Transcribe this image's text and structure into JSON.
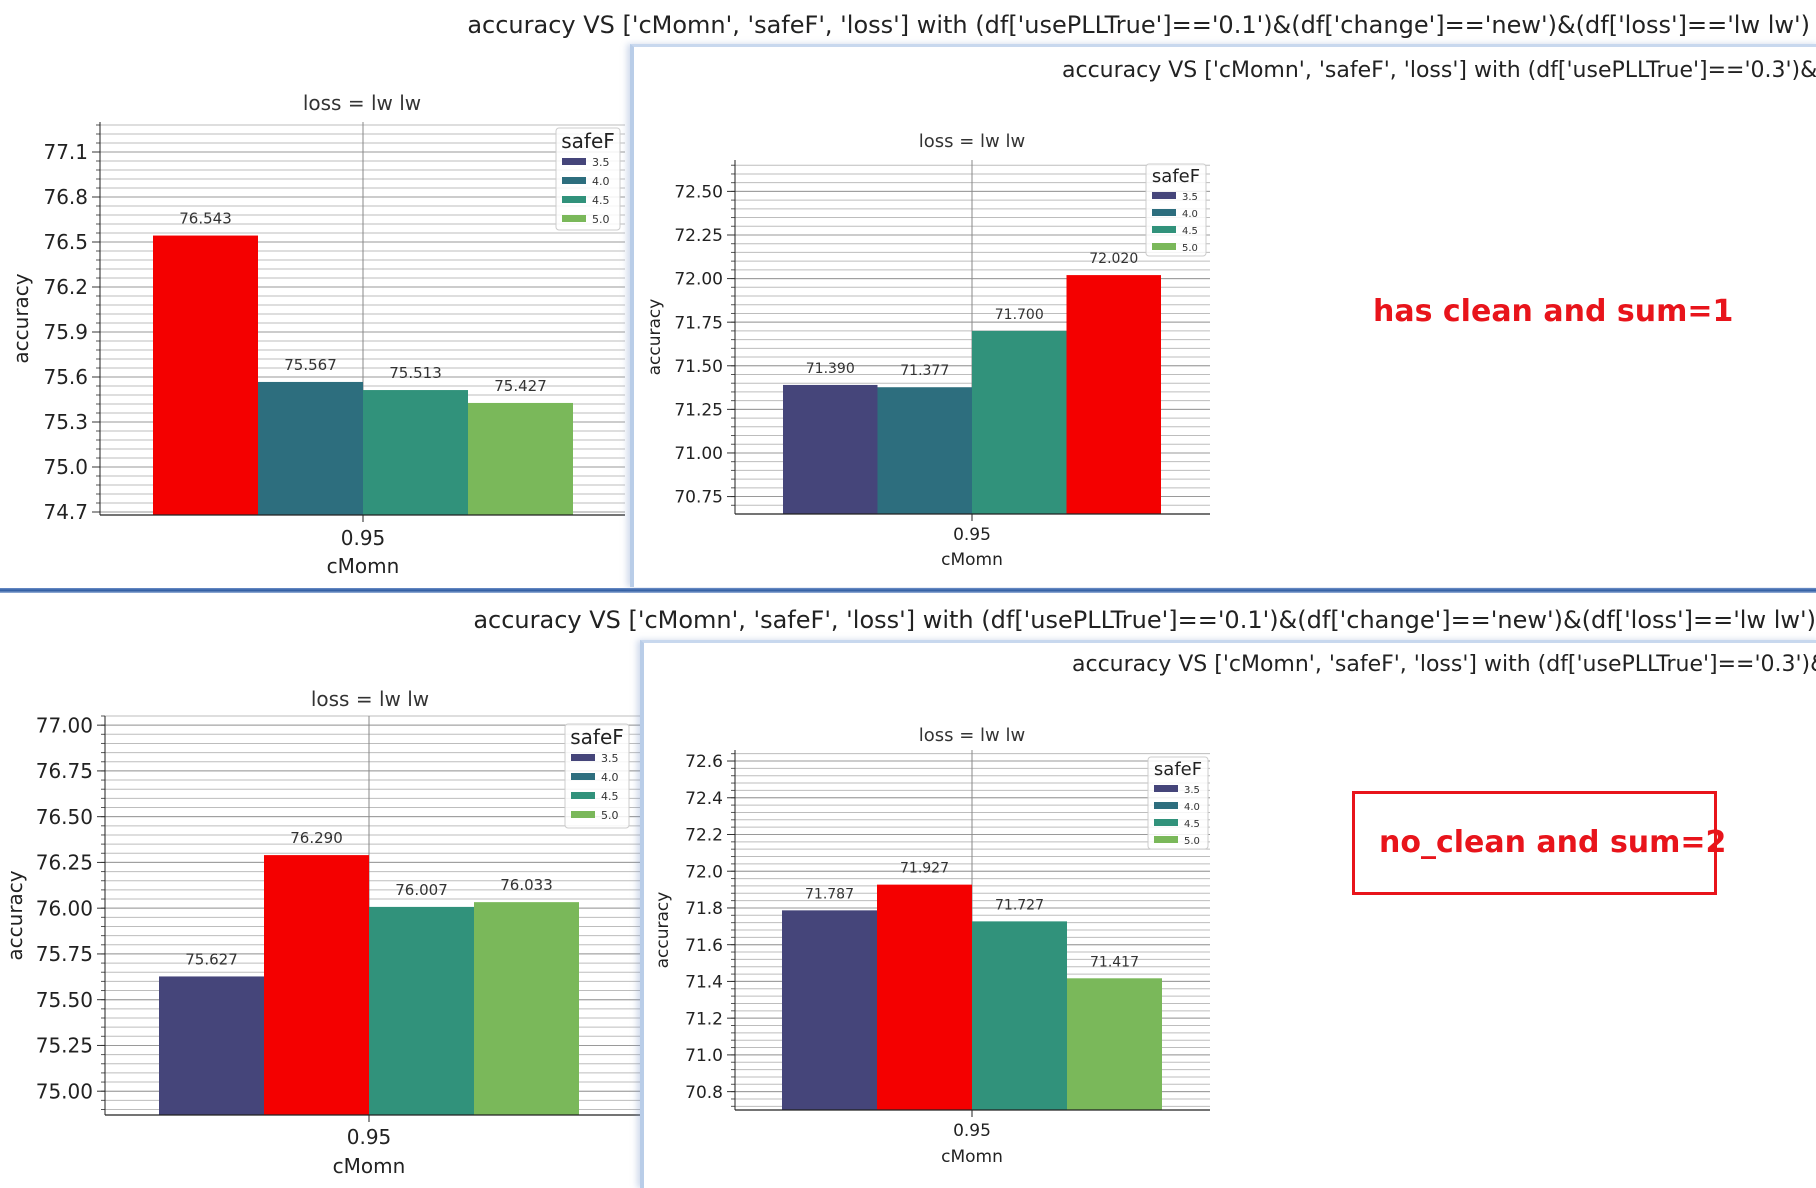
{
  "colors": {
    "3.5": "#45457a",
    "4.0": "#2d6e7e",
    "4.5": "#31927b",
    "5.0": "#7ab85a",
    "highlight": "#f40000",
    "annotation": "#e8141b"
  },
  "annotations": {
    "top": "has clean and sum=1",
    "bottom": "no_clean and sum=2"
  },
  "chart_data": [
    {
      "id": "top-left",
      "type": "bar",
      "title": "accuracy VS ['cMomn', 'safeF', 'loss'] with (df['usePLLTrue']=='0.1')&(df['change']=='new')&(df['loss']=='lw lw')",
      "subtitle": "loss = lw lw",
      "xlabel": "cMomn",
      "ylabel": "accuracy",
      "categories": [
        "0.95"
      ],
      "legend_title": "safeF",
      "legend_position": "top-right",
      "ylim": [
        74.68,
        77.3
      ],
      "yticks": [
        74.7,
        75.0,
        75.3,
        75.6,
        75.9,
        76.2,
        76.5,
        76.8,
        77.1
      ],
      "ytick_labels": [
        "74.7",
        "75.0",
        "75.3",
        "75.6",
        "75.9",
        "76.2",
        "76.5",
        "76.8",
        "77.1"
      ],
      "grid": true,
      "series": [
        {
          "name": "3.5",
          "values": [
            76.543
          ],
          "label": "76.543",
          "highlighted": true
        },
        {
          "name": "4.0",
          "values": [
            75.567
          ],
          "label": "75.567"
        },
        {
          "name": "4.5",
          "values": [
            75.513
          ],
          "label": "75.513"
        },
        {
          "name": "5.0",
          "values": [
            75.427
          ],
          "label": "75.427"
        }
      ]
    },
    {
      "id": "top-right",
      "type": "bar",
      "title": "accuracy VS ['cMomn', 'safeF', 'loss'] with (df['usePLLTrue']=='0.3')&(",
      "subtitle": "loss = lw lw",
      "xlabel": "cMomn",
      "ylabel": "accuracy",
      "categories": [
        "0.95"
      ],
      "legend_title": "safeF",
      "legend_position": "top-right",
      "ylim": [
        70.65,
        72.68
      ],
      "yticks": [
        70.75,
        71.0,
        71.25,
        71.5,
        71.75,
        72.0,
        72.25,
        72.5
      ],
      "ytick_labels": [
        "70.75",
        "71.00",
        "71.25",
        "71.50",
        "71.75",
        "72.00",
        "72.25",
        "72.50"
      ],
      "grid": true,
      "series": [
        {
          "name": "3.5",
          "values": [
            71.39
          ],
          "label": "71.390"
        },
        {
          "name": "4.0",
          "values": [
            71.377
          ],
          "label": "71.377"
        },
        {
          "name": "4.5",
          "values": [
            71.7
          ],
          "label": "71.700"
        },
        {
          "name": "5.0",
          "values": [
            72.02
          ],
          "label": "72.020",
          "highlighted": true
        }
      ]
    },
    {
      "id": "bottom-left",
      "type": "bar",
      "title": "accuracy VS ['cMomn', 'safeF', 'loss'] with (df['usePLLTrue']=='0.1')&(df['change']=='new')&(df['loss']=='lw lw')",
      "subtitle": "loss = lw lw",
      "xlabel": "cMomn",
      "ylabel": "accuracy",
      "categories": [
        "0.95"
      ],
      "legend_title": "safeF",
      "legend_position": "top-right",
      "ylim": [
        74.87,
        77.05
      ],
      "yticks": [
        75.0,
        75.25,
        75.5,
        75.75,
        76.0,
        76.25,
        76.5,
        76.75,
        77.0
      ],
      "ytick_labels": [
        "75.00",
        "75.25",
        "75.50",
        "75.75",
        "76.00",
        "76.25",
        "76.50",
        "76.75",
        "77.00"
      ],
      "grid": true,
      "series": [
        {
          "name": "3.5",
          "values": [
            75.627
          ],
          "label": "75.627"
        },
        {
          "name": "4.0",
          "values": [
            76.29
          ],
          "label": "76.290",
          "highlighted": true
        },
        {
          "name": "4.5",
          "values": [
            76.007
          ],
          "label": "76.007"
        },
        {
          "name": "5.0",
          "values": [
            76.033
          ],
          "label": "76.033"
        }
      ]
    },
    {
      "id": "bottom-right",
      "type": "bar",
      "title": "accuracy VS ['cMomn', 'safeF', 'loss'] with (df['usePLLTrue']=='0.3')&",
      "subtitle": "loss = lw lw",
      "xlabel": "cMomn",
      "ylabel": "accuracy",
      "categories": [
        "0.95"
      ],
      "legend_title": "safeF",
      "legend_position": "top-right",
      "ylim": [
        70.7,
        72.66
      ],
      "yticks": [
        70.8,
        71.0,
        71.2,
        71.4,
        71.6,
        71.8,
        72.0,
        72.2,
        72.4,
        72.6
      ],
      "ytick_labels": [
        "70.8",
        "71.0",
        "71.2",
        "71.4",
        "71.6",
        "71.8",
        "72.0",
        "72.2",
        "72.4",
        "72.6"
      ],
      "grid": true,
      "series": [
        {
          "name": "3.5",
          "values": [
            71.787
          ],
          "label": "71.787"
        },
        {
          "name": "4.0",
          "values": [
            71.927
          ],
          "label": "71.927",
          "highlighted": true
        },
        {
          "name": "4.5",
          "values": [
            71.727
          ],
          "label": "71.727"
        },
        {
          "name": "5.0",
          "values": [
            71.417
          ],
          "label": "71.417"
        }
      ]
    }
  ]
}
